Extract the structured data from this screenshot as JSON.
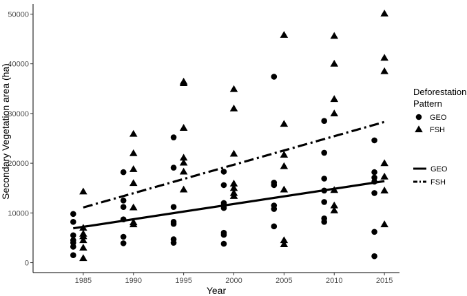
{
  "chart_data": {
    "type": "scatter",
    "title": "",
    "xlabel": "Year",
    "ylabel": "Secondary Vegetation area (ha)",
    "xlim": [
      1980,
      2016.5
    ],
    "ylim": [
      -2000,
      52000
    ],
    "x_ticks": [
      1985,
      1990,
      1995,
      2000,
      2005,
      2010,
      2015
    ],
    "y_ticks": [
      0,
      10000,
      20000,
      30000,
      40000,
      50000
    ],
    "grid": false,
    "colors": {
      "points": "#000000",
      "lines": "#000000"
    },
    "legend": {
      "placement": "right",
      "points_title_line1": "Deforestation",
      "points_title_line2": "Pattern",
      "points_entries": [
        {
          "label": "GEO",
          "marker": "circle"
        },
        {
          "label": "FSH",
          "marker": "triangle"
        }
      ],
      "lines_entries": [
        {
          "label": "GEO",
          "linestyle": "solid"
        },
        {
          "label": "FSH",
          "linestyle": "dashdot"
        }
      ]
    },
    "series": [
      {
        "name": "GEO",
        "marker": "circle",
        "points": [
          {
            "x": 1984,
            "y": 9800
          },
          {
            "x": 1984,
            "y": 8200
          },
          {
            "x": 1984,
            "y": 5500
          },
          {
            "x": 1984,
            "y": 4500
          },
          {
            "x": 1984,
            "y": 4000
          },
          {
            "x": 1984,
            "y": 3200
          },
          {
            "x": 1984,
            "y": 1500
          },
          {
            "x": 1989,
            "y": 18200
          },
          {
            "x": 1989,
            "y": 12500
          },
          {
            "x": 1989,
            "y": 11200
          },
          {
            "x": 1989,
            "y": 8700
          },
          {
            "x": 1989,
            "y": 5200
          },
          {
            "x": 1989,
            "y": 3900
          },
          {
            "x": 1994,
            "y": 25200
          },
          {
            "x": 1994,
            "y": 19100
          },
          {
            "x": 1994,
            "y": 11200
          },
          {
            "x": 1994,
            "y": 8200
          },
          {
            "x": 1994,
            "y": 7800
          },
          {
            "x": 1994,
            "y": 4700
          },
          {
            "x": 1994,
            "y": 4000
          },
          {
            "x": 1999,
            "y": 18300
          },
          {
            "x": 1999,
            "y": 15600
          },
          {
            "x": 1999,
            "y": 12000
          },
          {
            "x": 1999,
            "y": 11500
          },
          {
            "x": 1999,
            "y": 11000
          },
          {
            "x": 1999,
            "y": 6000
          },
          {
            "x": 1999,
            "y": 5600
          },
          {
            "x": 1999,
            "y": 3800
          },
          {
            "x": 2004,
            "y": 37400
          },
          {
            "x": 2004,
            "y": 16100
          },
          {
            "x": 2004,
            "y": 15600
          },
          {
            "x": 2004,
            "y": 11500
          },
          {
            "x": 2004,
            "y": 10800
          },
          {
            "x": 2004,
            "y": 7300
          },
          {
            "x": 2009,
            "y": 28500
          },
          {
            "x": 2009,
            "y": 22100
          },
          {
            "x": 2009,
            "y": 16900
          },
          {
            "x": 2009,
            "y": 14500
          },
          {
            "x": 2009,
            "y": 12200
          },
          {
            "x": 2009,
            "y": 8900
          },
          {
            "x": 2009,
            "y": 8200
          },
          {
            "x": 2014,
            "y": 24600
          },
          {
            "x": 2014,
            "y": 18200
          },
          {
            "x": 2014,
            "y": 17100
          },
          {
            "x": 2014,
            "y": 16300
          },
          {
            "x": 2014,
            "y": 14000
          },
          {
            "x": 2014,
            "y": 6200
          },
          {
            "x": 2014,
            "y": 1300
          }
        ],
        "trend": {
          "x": [
            1984,
            2015
          ],
          "y": [
            6900,
            16400
          ],
          "linestyle": "solid"
        }
      },
      {
        "name": "FSH",
        "marker": "triangle",
        "points": [
          {
            "x": 1985,
            "y": 14300
          },
          {
            "x": 1985,
            "y": 7000
          },
          {
            "x": 1985,
            "y": 5800
          },
          {
            "x": 1985,
            "y": 5300
          },
          {
            "x": 1985,
            "y": 4500
          },
          {
            "x": 1985,
            "y": 3000
          },
          {
            "x": 1985,
            "y": 900
          },
          {
            "x": 1990,
            "y": 25900
          },
          {
            "x": 1990,
            "y": 22000
          },
          {
            "x": 1990,
            "y": 18800
          },
          {
            "x": 1990,
            "y": 16000
          },
          {
            "x": 1990,
            "y": 11100
          },
          {
            "x": 1990,
            "y": 8100
          },
          {
            "x": 1990,
            "y": 7700
          },
          {
            "x": 1995,
            "y": 36400
          },
          {
            "x": 1995,
            "y": 36100
          },
          {
            "x": 1995,
            "y": 27100
          },
          {
            "x": 1995,
            "y": 21100
          },
          {
            "x": 1995,
            "y": 20100
          },
          {
            "x": 1995,
            "y": 18300
          },
          {
            "x": 1995,
            "y": 14700
          },
          {
            "x": 2000,
            "y": 34900
          },
          {
            "x": 2000,
            "y": 31000
          },
          {
            "x": 2000,
            "y": 21900
          },
          {
            "x": 2000,
            "y": 15900
          },
          {
            "x": 2000,
            "y": 15000
          },
          {
            "x": 2000,
            "y": 14000
          },
          {
            "x": 2000,
            "y": 13400
          },
          {
            "x": 2005,
            "y": 45800
          },
          {
            "x": 2005,
            "y": 27900
          },
          {
            "x": 2005,
            "y": 21700
          },
          {
            "x": 2005,
            "y": 19400
          },
          {
            "x": 2005,
            "y": 14700
          },
          {
            "x": 2005,
            "y": 4500
          },
          {
            "x": 2005,
            "y": 3700
          },
          {
            "x": 2010,
            "y": 45600
          },
          {
            "x": 2010,
            "y": 40000
          },
          {
            "x": 2010,
            "y": 32900
          },
          {
            "x": 2010,
            "y": 30000
          },
          {
            "x": 2010,
            "y": 14600
          },
          {
            "x": 2010,
            "y": 11500
          },
          {
            "x": 2010,
            "y": 10500
          },
          {
            "x": 2015,
            "y": 50100
          },
          {
            "x": 2015,
            "y": 41200
          },
          {
            "x": 2015,
            "y": 38500
          },
          {
            "x": 2015,
            "y": 20000
          },
          {
            "x": 2015,
            "y": 17300
          },
          {
            "x": 2015,
            "y": 14500
          },
          {
            "x": 2015,
            "y": 7700
          }
        ],
        "trend": {
          "x": [
            1985,
            2015
          ],
          "y": [
            11100,
            28300
          ],
          "linestyle": "dashdot"
        }
      }
    ]
  }
}
